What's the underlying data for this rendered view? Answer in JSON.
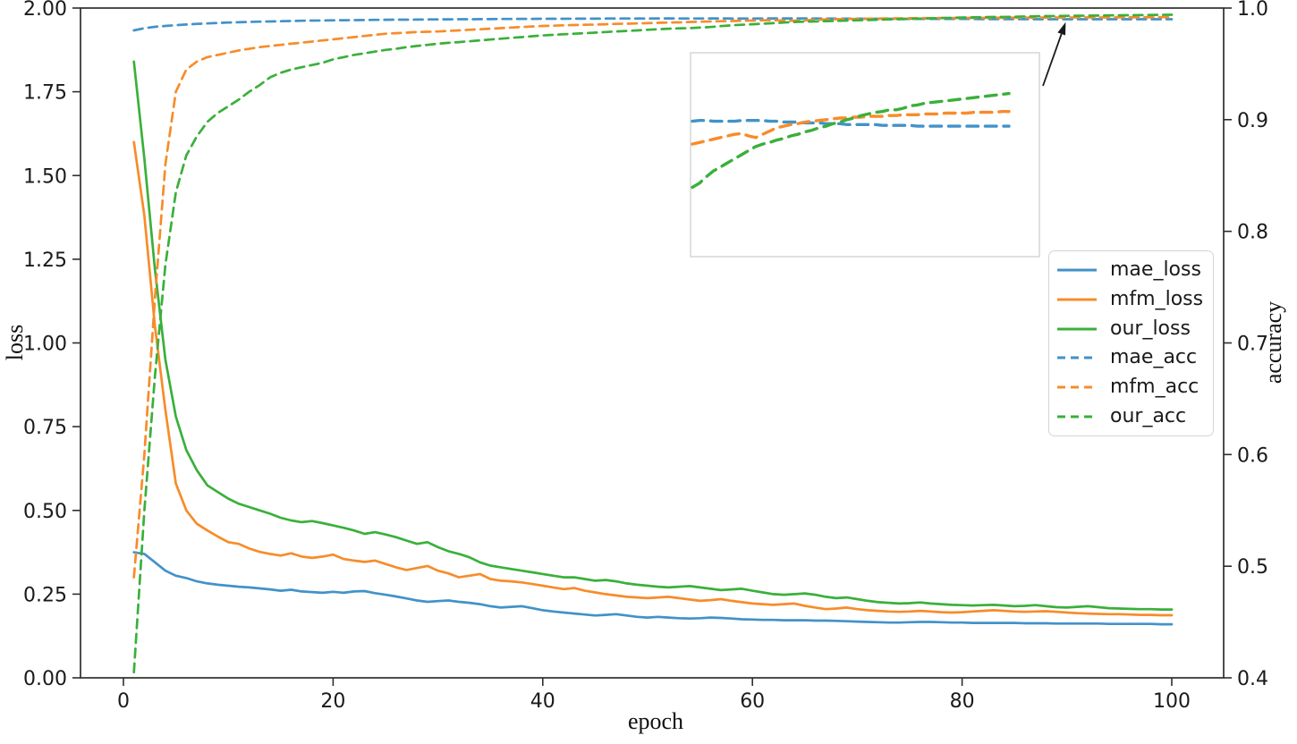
{
  "figure": {
    "background": "#ffffff",
    "spine_color": "#2e2e2e",
    "tick_text_color": "#1a1a1a"
  },
  "chart_data": {
    "type": "line",
    "title": "",
    "xlabel": "epoch",
    "ylabel_left": "loss",
    "ylabel_right": "accuracy",
    "grid": false,
    "legend_position": "center-right",
    "x_ticks": [
      0,
      20,
      40,
      60,
      80,
      100
    ],
    "x_tick_labels": [
      "0",
      "20",
      "40",
      "60",
      "80",
      "100"
    ],
    "loss_axis": {
      "min": 0.0,
      "max": 2.0,
      "ticks": [
        0.0,
        0.25,
        0.5,
        0.75,
        1.0,
        1.25,
        1.5,
        1.75,
        2.0
      ],
      "tick_labels": [
        "0.00",
        "0.25",
        "0.50",
        "0.75",
        "1.00",
        "1.25",
        "1.50",
        "1.75",
        "2.00"
      ]
    },
    "acc_axis": {
      "min": 0.4,
      "max": 1.0,
      "ticks": [
        0.4,
        0.5,
        0.6,
        0.7,
        0.8,
        0.9,
        1.0
      ],
      "tick_labels": [
        "0.4",
        "0.5",
        "0.6",
        "0.7",
        "0.8",
        "0.9",
        "1.0"
      ]
    },
    "epoch_start": 1,
    "epoch_step": 1,
    "series": [
      {
        "name": "mae_loss",
        "axis": "loss",
        "style": "solid",
        "color": "#4292c9",
        "values": [
          0.375,
          0.37,
          0.345,
          0.32,
          0.305,
          0.298,
          0.288,
          0.282,
          0.278,
          0.275,
          0.272,
          0.27,
          0.267,
          0.264,
          0.26,
          0.263,
          0.258,
          0.256,
          0.254,
          0.257,
          0.254,
          0.258,
          0.259,
          0.253,
          0.248,
          0.243,
          0.237,
          0.231,
          0.227,
          0.229,
          0.231,
          0.227,
          0.224,
          0.22,
          0.214,
          0.21,
          0.212,
          0.214,
          0.208,
          0.202,
          0.198,
          0.195,
          0.192,
          0.189,
          0.186,
          0.188,
          0.19,
          0.186,
          0.182,
          0.18,
          0.182,
          0.18,
          0.178,
          0.177,
          0.178,
          0.18,
          0.179,
          0.177,
          0.175,
          0.174,
          0.173,
          0.173,
          0.172,
          0.172,
          0.172,
          0.171,
          0.171,
          0.17,
          0.169,
          0.168,
          0.167,
          0.166,
          0.165,
          0.165,
          0.166,
          0.167,
          0.167,
          0.166,
          0.165,
          0.165,
          0.164,
          0.164,
          0.164,
          0.164,
          0.164,
          0.163,
          0.163,
          0.163,
          0.162,
          0.162,
          0.162,
          0.162,
          0.162,
          0.161,
          0.161,
          0.161,
          0.161,
          0.161,
          0.16,
          0.16
        ]
      },
      {
        "name": "mfm_loss",
        "axis": "loss",
        "style": "solid",
        "color": "#f78c2a",
        "values": [
          1.6,
          1.38,
          1.05,
          0.8,
          0.58,
          0.5,
          0.46,
          0.44,
          0.422,
          0.405,
          0.4,
          0.386,
          0.376,
          0.37,
          0.365,
          0.372,
          0.362,
          0.358,
          0.362,
          0.368,
          0.355,
          0.35,
          0.346,
          0.35,
          0.34,
          0.33,
          0.322,
          0.328,
          0.334,
          0.32,
          0.312,
          0.3,
          0.305,
          0.31,
          0.295,
          0.29,
          0.288,
          0.285,
          0.28,
          0.275,
          0.27,
          0.265,
          0.268,
          0.26,
          0.255,
          0.25,
          0.246,
          0.242,
          0.24,
          0.238,
          0.24,
          0.242,
          0.238,
          0.234,
          0.23,
          0.232,
          0.235,
          0.23,
          0.226,
          0.222,
          0.22,
          0.218,
          0.22,
          0.222,
          0.215,
          0.21,
          0.205,
          0.207,
          0.21,
          0.205,
          0.202,
          0.2,
          0.198,
          0.197,
          0.198,
          0.2,
          0.198,
          0.196,
          0.195,
          0.196,
          0.198,
          0.2,
          0.202,
          0.2,
          0.198,
          0.197,
          0.198,
          0.199,
          0.197,
          0.195,
          0.193,
          0.192,
          0.191,
          0.19,
          0.19,
          0.189,
          0.188,
          0.188,
          0.187,
          0.187
        ]
      },
      {
        "name": "our_loss",
        "axis": "loss",
        "style": "solid",
        "color": "#3ab03a",
        "values": [
          1.84,
          1.55,
          1.22,
          0.95,
          0.78,
          0.68,
          0.62,
          0.575,
          0.555,
          0.535,
          0.52,
          0.51,
          0.5,
          0.49,
          0.478,
          0.47,
          0.465,
          0.468,
          0.462,
          0.455,
          0.448,
          0.44,
          0.43,
          0.435,
          0.428,
          0.42,
          0.41,
          0.4,
          0.405,
          0.39,
          0.378,
          0.37,
          0.36,
          0.345,
          0.335,
          0.33,
          0.325,
          0.32,
          0.315,
          0.31,
          0.305,
          0.3,
          0.3,
          0.295,
          0.29,
          0.292,
          0.288,
          0.282,
          0.278,
          0.275,
          0.272,
          0.27,
          0.272,
          0.274,
          0.27,
          0.266,
          0.262,
          0.264,
          0.266,
          0.26,
          0.255,
          0.25,
          0.248,
          0.25,
          0.252,
          0.248,
          0.242,
          0.238,
          0.24,
          0.235,
          0.23,
          0.226,
          0.224,
          0.222,
          0.223,
          0.225,
          0.222,
          0.22,
          0.218,
          0.217,
          0.216,
          0.217,
          0.218,
          0.216,
          0.214,
          0.215,
          0.217,
          0.214,
          0.211,
          0.21,
          0.212,
          0.214,
          0.211,
          0.208,
          0.207,
          0.206,
          0.205,
          0.205,
          0.204,
          0.204
        ]
      },
      {
        "name": "mae_acc",
        "axis": "accuracy",
        "style": "dashed",
        "color": "#4292c9",
        "values": [
          0.98,
          0.982,
          0.9832,
          0.984,
          0.9847,
          0.9853,
          0.9858,
          0.9862,
          0.9866,
          0.987,
          0.9873,
          0.9876,
          0.9878,
          0.988,
          0.9882,
          0.9884,
          0.9886,
          0.9888,
          0.9889,
          0.989,
          0.9891,
          0.9892,
          0.9893,
          0.9894,
          0.9895,
          0.9896,
          0.9896,
          0.9897,
          0.9898,
          0.9898,
          0.9899,
          0.99,
          0.99,
          0.9901,
          0.9901,
          0.9902,
          0.9902,
          0.9903,
          0.9903,
          0.9904,
          0.9904,
          0.9904,
          0.9905,
          0.9905,
          0.9905,
          0.9906,
          0.9906,
          0.9906,
          0.9906,
          0.9906,
          0.9907,
          0.9907,
          0.9906,
          0.9906,
          0.9906,
          0.9907,
          0.9907,
          0.9906,
          0.9906,
          0.9906,
          0.9906,
          0.9907,
          0.9907,
          0.9907,
          0.9907,
          0.9906,
          0.9906,
          0.9905,
          0.9905,
          0.9905,
          0.9904,
          0.9904,
          0.9904,
          0.9903,
          0.9903,
          0.9903,
          0.9902,
          0.9902,
          0.9902,
          0.9902,
          0.9902,
          0.9901,
          0.9901,
          0.9901,
          0.9901,
          0.9901,
          0.99,
          0.99,
          0.99,
          0.99,
          0.99,
          0.99,
          0.99,
          0.99,
          0.99,
          0.99,
          0.99,
          0.99,
          0.99,
          0.99
        ]
      },
      {
        "name": "mfm_acc",
        "axis": "accuracy",
        "style": "dashed",
        "color": "#f78c2a",
        "values": [
          0.49,
          0.6,
          0.74,
          0.86,
          0.925,
          0.945,
          0.952,
          0.956,
          0.958,
          0.96,
          0.962,
          0.9635,
          0.965,
          0.966,
          0.967,
          0.968,
          0.969,
          0.97,
          0.971,
          0.972,
          0.973,
          0.974,
          0.975,
          0.976,
          0.977,
          0.9775,
          0.978,
          0.9785,
          0.9788,
          0.979,
          0.9795,
          0.98,
          0.9805,
          0.981,
          0.9815,
          0.982,
          0.9825,
          0.983,
          0.9835,
          0.984,
          0.9842,
          0.9845,
          0.9848,
          0.985,
          0.9852,
          0.9855,
          0.9858,
          0.986,
          0.9862,
          0.9865,
          0.9868,
          0.987,
          0.9872,
          0.9875,
          0.9878,
          0.988,
          0.9882,
          0.9884,
          0.9886,
          0.9888,
          0.989,
          0.9891,
          0.9888,
          0.9886,
          0.989,
          0.9894,
          0.9898,
          0.99,
          0.9902,
          0.9903,
          0.9905,
          0.9906,
          0.9907,
          0.9908,
          0.9909,
          0.991,
          0.991,
          0.9911,
          0.9911,
          0.9912,
          0.9912,
          0.9912,
          0.9913,
          0.9913,
          0.9914,
          0.9914,
          0.9914,
          0.9915,
          0.9915,
          0.9915,
          0.9916,
          0.9916,
          0.9916,
          0.9916,
          0.9917,
          0.9917,
          0.9917,
          0.9917,
          0.9918,
          0.9918
        ]
      },
      {
        "name": "our_acc",
        "axis": "accuracy",
        "style": "dashed",
        "color": "#3ab03a",
        "values": [
          0.405,
          0.55,
          0.67,
          0.77,
          0.835,
          0.868,
          0.885,
          0.898,
          0.906,
          0.912,
          0.918,
          0.925,
          0.931,
          0.938,
          0.942,
          0.945,
          0.947,
          0.949,
          0.951,
          0.954,
          0.956,
          0.958,
          0.9595,
          0.961,
          0.9625,
          0.9635,
          0.965,
          0.966,
          0.967,
          0.968,
          0.9688,
          0.9695,
          0.9703,
          0.971,
          0.9718,
          0.9725,
          0.9733,
          0.974,
          0.9748,
          0.9755,
          0.976,
          0.9765,
          0.977,
          0.9775,
          0.978,
          0.9785,
          0.979,
          0.9795,
          0.98,
          0.9805,
          0.981,
          0.9815,
          0.9818,
          0.982,
          0.9825,
          0.983,
          0.9838,
          0.9845,
          0.985,
          0.9855,
          0.986,
          0.9865,
          0.987,
          0.9875,
          0.9878,
          0.988,
          0.9883,
          0.9885,
          0.9888,
          0.989,
          0.9893,
          0.9895,
          0.9898,
          0.99,
          0.9903,
          0.9905,
          0.9908,
          0.991,
          0.9913,
          0.9915,
          0.9917,
          0.9918,
          0.992,
          0.992,
          0.9922,
          0.9925,
          0.9926,
          0.9928,
          0.9929,
          0.993,
          0.9931,
          0.9932,
          0.9933,
          0.9934,
          0.9935,
          0.9936,
          0.9937,
          0.9938,
          0.9939,
          0.994
        ]
      }
    ],
    "inset": {
      "shows_series": [
        "mae_acc",
        "mfm_acc",
        "our_acc"
      ],
      "window_epochs": [
        55,
        100
      ],
      "window_accuracy": [
        0.974,
        0.999
      ],
      "tick_labels_visible": false,
      "border_color": "#d5d5d5"
    },
    "annotation_arrow": {
      "color": "#1a1a1a",
      "points_to": {
        "epoch": 95,
        "accuracy": 0.997
      }
    }
  }
}
